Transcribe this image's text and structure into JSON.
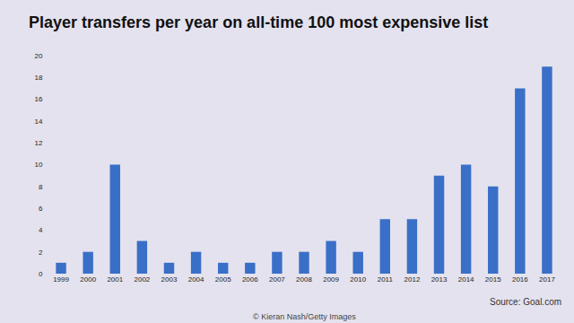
{
  "chart_data": {
    "type": "bar",
    "title": "Player transfers per year on all-time 100 most expensive list",
    "categories": [
      "1999",
      "2000",
      "2001",
      "2002",
      "2003",
      "2004",
      "2005",
      "2006",
      "2007",
      "2008",
      "2009",
      "2010",
      "2011",
      "2012",
      "2013",
      "2014",
      "2015",
      "2016",
      "2017"
    ],
    "values": [
      1,
      2,
      10,
      3,
      1,
      2,
      1,
      1,
      2,
      2,
      3,
      2,
      5,
      5,
      9,
      10,
      8,
      17,
      19
    ],
    "color": "#3a6fc8",
    "ylim": [
      0,
      20
    ],
    "yticks": [
      0,
      2,
      4,
      6,
      8,
      10,
      12,
      14,
      16,
      18,
      20
    ],
    "grid": false,
    "annotations": [
      "Source: Goal.com",
      "© Kieran Nash/Getty Images"
    ]
  }
}
